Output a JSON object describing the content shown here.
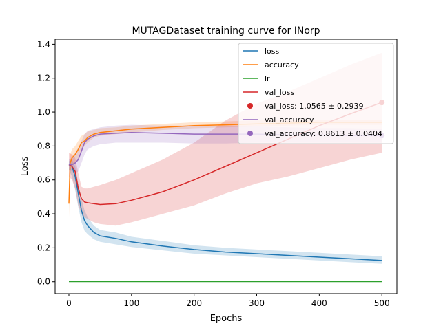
{
  "chart_data": {
    "type": "line",
    "title": "MUTAGDataset training curve for INorp",
    "xlabel": "Epochs",
    "ylabel": "Loss",
    "xlim": [
      -22,
      524
    ],
    "ylim": [
      -0.07,
      1.43
    ],
    "xticks": [
      0,
      100,
      200,
      300,
      400,
      500
    ],
    "yticks": [
      0.0,
      0.2,
      0.4,
      0.6,
      0.8,
      1.0,
      1.2,
      1.4
    ],
    "grid": false,
    "legend_position": "top-right",
    "colors": {
      "loss": "#1f77b4",
      "accuracy": "#ff7f0e",
      "lr": "#2ca02c",
      "val_loss": "#d62728",
      "val_accuracy": "#9467bd"
    },
    "series": [
      {
        "name": "loss",
        "x": [
          0,
          5,
          10,
          15,
          20,
          25,
          30,
          40,
          50,
          75,
          100,
          150,
          200,
          250,
          300,
          350,
          400,
          450,
          500
        ],
        "values": [
          0.69,
          0.68,
          0.62,
          0.52,
          0.42,
          0.36,
          0.33,
          0.29,
          0.27,
          0.255,
          0.235,
          0.21,
          0.19,
          0.175,
          0.165,
          0.155,
          0.145,
          0.135,
          0.125
        ],
        "band_lower": [
          0.66,
          0.62,
          0.54,
          0.44,
          0.35,
          0.3,
          0.28,
          0.25,
          0.235,
          0.22,
          0.205,
          0.185,
          0.165,
          0.155,
          0.145,
          0.135,
          0.125,
          0.115,
          0.105
        ],
        "band_upper": [
          0.71,
          0.72,
          0.68,
          0.58,
          0.49,
          0.42,
          0.38,
          0.33,
          0.305,
          0.29,
          0.265,
          0.24,
          0.215,
          0.2,
          0.19,
          0.18,
          0.17,
          0.16,
          0.15
        ]
      },
      {
        "name": "accuracy",
        "x": [
          0,
          2,
          5,
          10,
          15,
          20,
          25,
          30,
          40,
          50,
          75,
          100,
          150,
          200,
          250,
          300,
          350,
          400,
          450,
          500
        ],
        "values": [
          0.46,
          0.7,
          0.73,
          0.75,
          0.78,
          0.82,
          0.83,
          0.85,
          0.87,
          0.88,
          0.89,
          0.9,
          0.91,
          0.92,
          0.925,
          0.93,
          0.935,
          0.94,
          0.94,
          0.94
        ],
        "band_lower": [
          0.38,
          0.65,
          0.68,
          0.7,
          0.73,
          0.78,
          0.8,
          0.82,
          0.85,
          0.86,
          0.87,
          0.88,
          0.895,
          0.905,
          0.91,
          0.915,
          0.92,
          0.925,
          0.925,
          0.925
        ],
        "band_upper": [
          0.54,
          0.75,
          0.78,
          0.8,
          0.83,
          0.86,
          0.87,
          0.885,
          0.895,
          0.905,
          0.91,
          0.92,
          0.93,
          0.94,
          0.945,
          0.95,
          0.955,
          0.955,
          0.955,
          0.955
        ]
      },
      {
        "name": "lr",
        "x": [
          0,
          500
        ],
        "values": [
          0.001,
          0.001
        ]
      },
      {
        "name": "val_loss",
        "x": [
          0,
          5,
          10,
          15,
          20,
          25,
          30,
          40,
          50,
          75,
          100,
          150,
          200,
          250,
          300,
          350,
          400,
          450,
          500
        ],
        "values": [
          0.69,
          0.68,
          0.65,
          0.55,
          0.49,
          0.47,
          0.465,
          0.46,
          0.455,
          0.46,
          0.48,
          0.53,
          0.6,
          0.68,
          0.76,
          0.84,
          0.92,
          0.99,
          1.0565
        ],
        "band_lower": [
          0.62,
          0.6,
          0.55,
          0.45,
          0.4,
          0.38,
          0.37,
          0.35,
          0.34,
          0.33,
          0.35,
          0.4,
          0.45,
          0.52,
          0.58,
          0.62,
          0.67,
          0.72,
          0.76
        ],
        "band_upper": [
          0.76,
          0.75,
          0.73,
          0.64,
          0.56,
          0.55,
          0.55,
          0.56,
          0.57,
          0.6,
          0.64,
          0.72,
          0.82,
          0.95,
          1.05,
          1.12,
          1.2,
          1.28,
          1.35
        ]
      },
      {
        "name": "val_accuracy",
        "x": [
          0,
          5,
          10,
          15,
          20,
          25,
          30,
          40,
          50,
          75,
          100,
          150,
          200,
          250,
          300,
          350,
          400,
          450,
          500
        ],
        "values": [
          0.69,
          0.69,
          0.7,
          0.72,
          0.77,
          0.82,
          0.84,
          0.86,
          0.87,
          0.875,
          0.88,
          0.875,
          0.87,
          0.87,
          0.87,
          0.865,
          0.865,
          0.862,
          0.8613
        ],
        "band_lower": [
          0.66,
          0.65,
          0.64,
          0.65,
          0.7,
          0.75,
          0.78,
          0.8,
          0.81,
          0.82,
          0.82,
          0.82,
          0.815,
          0.815,
          0.82,
          0.82,
          0.82,
          0.82,
          0.82
        ],
        "band_upper": [
          0.72,
          0.73,
          0.76,
          0.79,
          0.83,
          0.87,
          0.89,
          0.9,
          0.91,
          0.92,
          0.925,
          0.92,
          0.92,
          0.915,
          0.915,
          0.91,
          0.905,
          0.905,
          0.9
        ]
      }
    ],
    "final_points": [
      {
        "name": "val_loss",
        "x": 500,
        "y": 1.0565,
        "label": "val_loss: 1.0565 ± 0.2939"
      },
      {
        "name": "val_accuracy",
        "x": 500,
        "y": 0.8613,
        "label": "val_accuracy: 0.8613 ± 0.0404"
      }
    ],
    "legend": [
      {
        "label": "loss",
        "kind": "line",
        "key": "loss"
      },
      {
        "label": "accuracy",
        "kind": "line",
        "key": "accuracy"
      },
      {
        "label": "lr",
        "kind": "line",
        "key": "lr"
      },
      {
        "label": "val_loss",
        "kind": "line",
        "key": "val_loss"
      },
      {
        "label": "val_loss: 1.0565 ± 0.2939",
        "kind": "dot",
        "key": "val_loss"
      },
      {
        "label": "val_accuracy",
        "kind": "line",
        "key": "val_accuracy"
      },
      {
        "label": "val_accuracy: 0.8613 ± 0.0404",
        "kind": "dot",
        "key": "val_accuracy"
      }
    ]
  }
}
